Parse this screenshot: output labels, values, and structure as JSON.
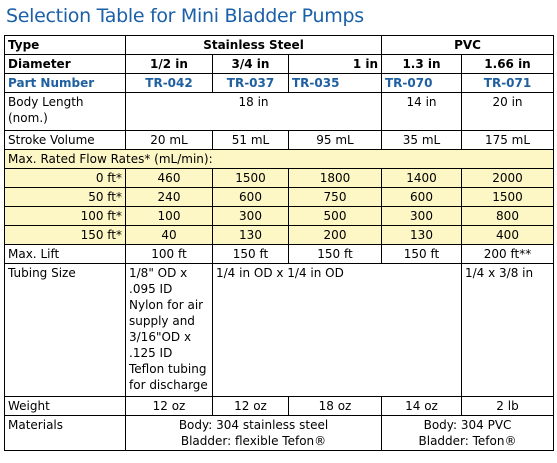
{
  "title": "Selection Table for Mini Bladder Pumps",
  "type_row": {
    "label": "Type",
    "stainless": "Stainless Steel",
    "pvc": "PVC"
  },
  "diameter_row": {
    "label": "Diameter",
    "values": [
      "1/2 in",
      "3/4 in",
      "1 in",
      "1.3 in",
      "1.66 in"
    ]
  },
  "part_row": {
    "label": "Part Number",
    "values": [
      "TR-042",
      "TR-037",
      "TR-035",
      "TR-070",
      "TR-071"
    ]
  },
  "body_length": {
    "label": "Body Length (nom.)",
    "stainless": "18 in",
    "pvc1": "14 in",
    "pvc2": "20 in"
  },
  "stroke_volume": {
    "label": "Stroke Volume",
    "values": [
      "20 mL",
      "51 mL",
      "95 mL",
      "35 mL",
      "175 mL"
    ]
  },
  "flow_header": "Max. Rated Flow Rates* (mL/min):",
  "flow_rows": [
    {
      "label": "0 ft*",
      "values": [
        "460",
        "1500",
        "1800",
        "1400",
        "2000"
      ]
    },
    {
      "label": "50 ft*",
      "values": [
        "240",
        "600",
        "750",
        "600",
        "1500"
      ]
    },
    {
      "label": "100 ft*",
      "values": [
        "100",
        "300",
        "500",
        "300",
        "800"
      ]
    },
    {
      "label": "150 ft*",
      "values": [
        "40",
        "130",
        "200",
        "130",
        "400"
      ]
    }
  ],
  "max_lift": {
    "label": "Max. Lift",
    "values": [
      "100 ft",
      "150 ft",
      "150 ft",
      "150 ft",
      "200 ft**"
    ]
  },
  "tubing": {
    "label": "Tubing Size",
    "first": "1/8\" OD x .095 ID Nylon for air supply and 3/16\"OD x .125 ID Teflon tubing for discharge",
    "middle": "1/4 in OD x 1/4 in OD",
    "last": "1/4 x 3/8 in"
  },
  "weight": {
    "label": "Weight",
    "values": [
      "12 oz",
      "12 oz",
      "18 oz",
      "14 oz",
      "2 lb"
    ]
  },
  "materials": {
    "label": "Materials",
    "stainless_body": "Body: 304 stainless steel",
    "stainless_bladder": "Bladder: flexible Tefon®",
    "pvc_body": "Body: 304 PVC",
    "pvc_bladder": "Bladder: Tefon®"
  }
}
